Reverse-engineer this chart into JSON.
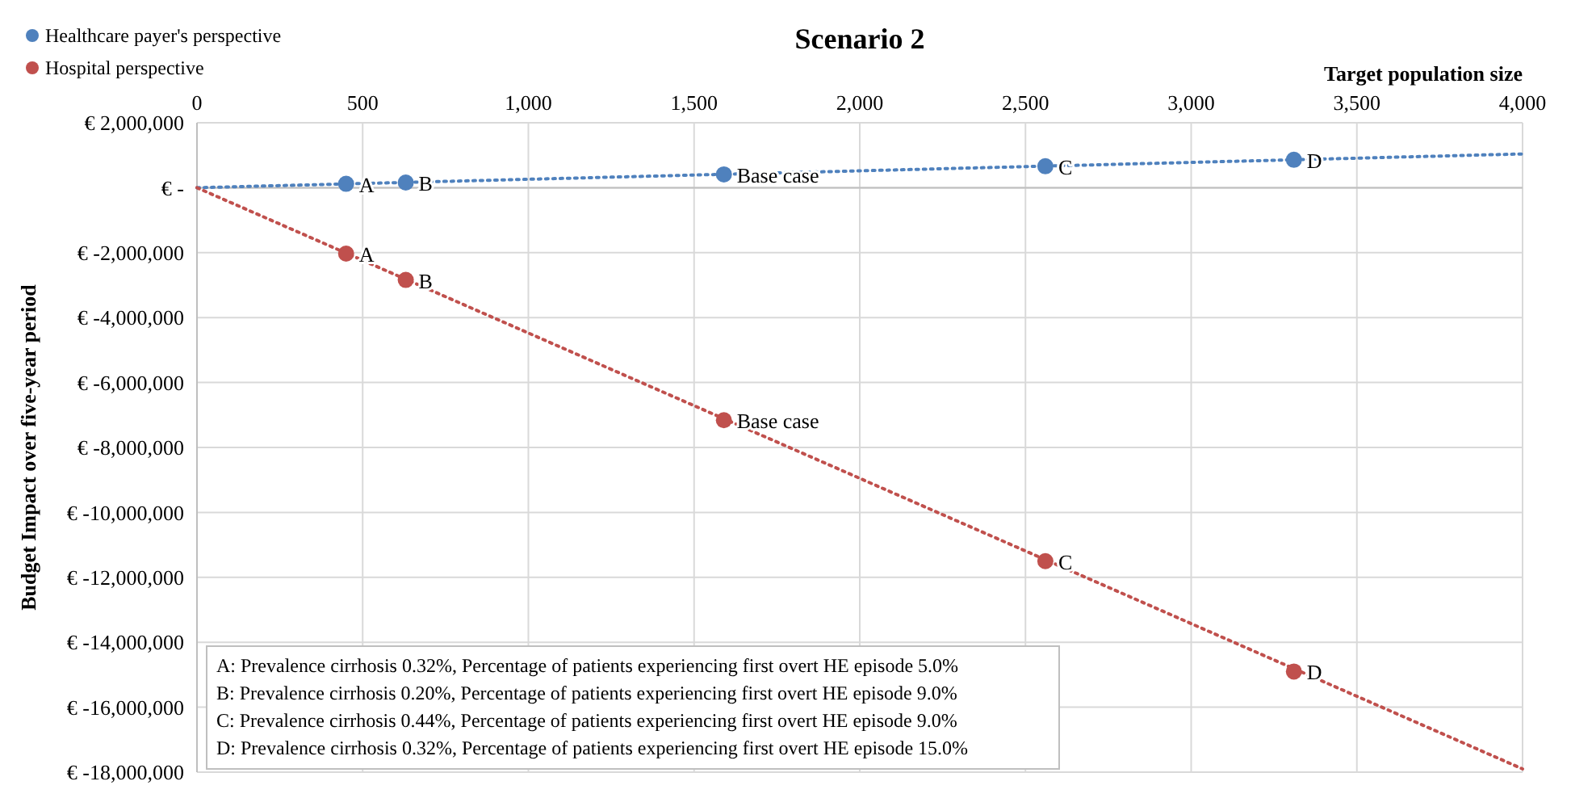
{
  "chart_data": {
    "type": "scatter",
    "title": "Scenario 2",
    "xlabel": "Target population size",
    "ylabel": "Budget Impact over five-year period",
    "xlim": [
      0,
      4000
    ],
    "xticks": [
      0,
      {
        "value": 500,
        "label": "500"
      },
      {
        "value": 1000,
        "label": "1,000"
      },
      {
        "value": 1500,
        "label": "1,500"
      },
      {
        "value": 2000,
        "label": "2,000"
      },
      {
        "value": 2500,
        "label": "2,500"
      },
      {
        "value": 3000,
        "label": "3,000"
      },
      {
        "value": 3500,
        "label": "3,500"
      },
      {
        "value": 4000,
        "label": "4,000"
      }
    ],
    "ylim": [
      -18000000,
      2000000
    ],
    "yticks": [
      {
        "value": 2000000,
        "label": "€ 2,000,000"
      },
      {
        "value": 0,
        "label": "€ -"
      },
      {
        "value": -2000000,
        "label": "€ -2,000,000"
      },
      {
        "value": -4000000,
        "label": "€ -4,000,000"
      },
      {
        "value": -6000000,
        "label": "€ -6,000,000"
      },
      {
        "value": -8000000,
        "label": "€ -8,000,000"
      },
      {
        "value": -10000000,
        "label": "€ -10,000,000"
      },
      {
        "value": -12000000,
        "label": "€ -12,000,000"
      },
      {
        "value": -14000000,
        "label": "€ -14,000,000"
      },
      {
        "value": -16000000,
        "label": "€ -16,000,000"
      },
      {
        "value": -18000000,
        "label": "€ -18,000,000"
      }
    ],
    "grid": true,
    "legend": "top left",
    "marker": "circle",
    "series": [
      {
        "type": "line",
        "color": "#4f81bd",
        "x": [
          0,
          4000
        ],
        "values": [
          0,
          1040000
        ],
        "marker": "none",
        "line_style": "dotted"
      },
      {
        "type": "line",
        "color": "#c0504d",
        "x": [
          0,
          4000
        ],
        "values": [
          0,
          -17900000
        ],
        "marker": "none",
        "line_style": "dotted"
      },
      {
        "name": "Healthcare payer's perspective",
        "color": "#4f81bd",
        "x": [
          450,
          630,
          1590,
          2560,
          3310
        ],
        "values": [
          120000,
          160000,
          410000,
          660000,
          860000
        ]
      },
      {
        "name": "Hospital perspective",
        "color": "#c0504d",
        "x": [
          450,
          630,
          1590,
          2560,
          3310
        ],
        "values": [
          -2030000,
          -2840000,
          -7160000,
          -11500000,
          -14900000
        ]
      }
    ],
    "annotations": [
      {
        "text": "A",
        "x": 450,
        "y": 120000
      },
      {
        "text": "B",
        "x": 630,
        "y": 160000
      },
      {
        "text": "Base case",
        "x": 1590,
        "y": 410000
      },
      {
        "text": "C",
        "x": 2560,
        "y": 660000
      },
      {
        "text": "D",
        "x": 3310,
        "y": 860000
      },
      {
        "text": "A",
        "x": 450,
        "y": -2030000
      },
      {
        "text": "B",
        "x": 630,
        "y": -2840000
      },
      {
        "text": "Base case",
        "x": 1590,
        "y": -7160000
      },
      {
        "text": "C",
        "x": 2560,
        "y": -11500000
      },
      {
        "text": "D",
        "x": 3310,
        "y": -14900000
      },
      "A: Prevalence cirrhosis 0.32%, Percentage of patients experiencing first overt HE episode 5.0%",
      "B: Prevalence cirrhosis 0.20%, Percentage of patients experiencing first overt HE episode 9.0%",
      "C: Prevalence cirrhosis 0.44%, Percentage of patients experiencing first overt HE episode 9.0%",
      "D: Prevalence cirrhosis 0.32%, Percentage of patients experiencing first overt HE episode 15.0%"
    ]
  }
}
